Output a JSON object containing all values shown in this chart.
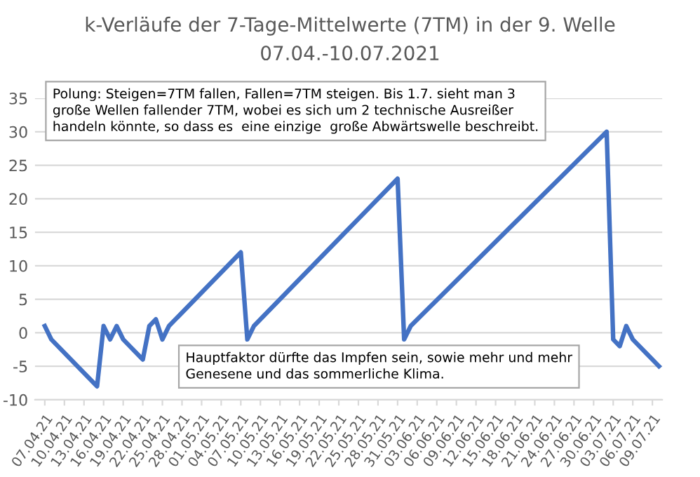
{
  "chart_data": {
    "type": "line",
    "title": "k-Verläufe der 7-Tage-Mittelwerte (7TM) in der 9. Welle",
    "subtitle": "07.04.-10.07.2021",
    "annotations": [
      "Polung: Steigen=7TM fallen, Fallen=7TM steigen. Bis 1.7. sieht man 3\ngroße Wellen fallender 7TM, wobei es sich um 2 technische Ausreißer\nhandeln könnte, so dass es  eine einzige  große Abwärtswelle beschreibt.",
      "Hauptfaktor dürfte das Impfen sein, sowie mehr und mehr\nGenesene und das sommerliche Klima."
    ],
    "x": [
      "2021-04-07",
      "2021-04-08",
      "2021-04-15",
      "2021-04-16",
      "2021-04-17",
      "2021-04-18",
      "2021-04-19",
      "2021-04-22",
      "2021-04-23",
      "2021-04-24",
      "2021-04-25",
      "2021-04-26",
      "2021-05-07",
      "2021-05-08",
      "2021-05-09",
      "2021-05-23",
      "2021-05-31",
      "2021-06-01",
      "2021-06-02",
      "2021-07-02",
      "2021-07-03",
      "2021-07-04",
      "2021-07-05",
      "2021-07-06",
      "2021-07-08",
      "2021-07-10"
    ],
    "series": [
      {
        "color": "#4472c4",
        "values": [
          1,
          -1,
          -8,
          1,
          -1,
          1,
          -1,
          -4,
          1,
          2,
          -1,
          1,
          12,
          -1,
          1,
          15,
          23,
          -1,
          1,
          30,
          -1,
          -2,
          1,
          -1,
          -3,
          -5
        ]
      }
    ],
    "xlim": [
      "2021-04-05T12:00",
      "2021-07-10T12:00"
    ],
    "xticks": [
      {
        "value": "2021-04-07",
        "label": "07.04.21"
      },
      {
        "value": "2021-04-10",
        "label": "10.04.21"
      },
      {
        "value": "2021-04-13",
        "label": "13.04.21"
      },
      {
        "value": "2021-04-16",
        "label": "16.04.21"
      },
      {
        "value": "2021-04-19",
        "label": "19.04.21"
      },
      {
        "value": "2021-04-22",
        "label": "22.04.21"
      },
      {
        "value": "2021-04-25",
        "label": "25.04.21"
      },
      {
        "value": "2021-04-28",
        "label": "28.04.21"
      },
      {
        "value": "2021-05-01",
        "label": "01.05.21"
      },
      {
        "value": "2021-05-04",
        "label": "04.05.21"
      },
      {
        "value": "2021-05-07",
        "label": "07.05.21"
      },
      {
        "value": "2021-05-10",
        "label": "10.05.21"
      },
      {
        "value": "2021-05-13",
        "label": "13.05.21"
      },
      {
        "value": "2021-05-16",
        "label": "16.05.21"
      },
      {
        "value": "2021-05-19",
        "label": "19.05.21"
      },
      {
        "value": "2021-05-22",
        "label": "22.05.21"
      },
      {
        "value": "2021-05-25",
        "label": "25.05.21"
      },
      {
        "value": "2021-05-28",
        "label": "28.05.21"
      },
      {
        "value": "2021-05-31",
        "label": "31.05.21"
      },
      {
        "value": "2021-06-03",
        "label": "03.06.21"
      },
      {
        "value": "2021-06-06",
        "label": "06.06.21"
      },
      {
        "value": "2021-06-09",
        "label": "09.06.21"
      },
      {
        "value": "2021-06-12",
        "label": "12.06.21"
      },
      {
        "value": "2021-06-15",
        "label": "15.06.21"
      },
      {
        "value": "2021-06-18",
        "label": "18.06.21"
      },
      {
        "value": "2021-06-21",
        "label": "21.06.21"
      },
      {
        "value": "2021-06-24",
        "label": "24.06.21"
      },
      {
        "value": "2021-06-27",
        "label": "27.06.21"
      },
      {
        "value": "2021-06-30",
        "label": "30.06.21"
      },
      {
        "value": "2021-07-03",
        "label": "03.07.21"
      },
      {
        "value": "2021-07-06",
        "label": "06.07.21"
      },
      {
        "value": "2021-07-09",
        "label": "09.07.21"
      }
    ],
    "ylim": [
      -10,
      35
    ],
    "yticks": [
      -10,
      -5,
      0,
      5,
      10,
      15,
      20,
      25,
      30,
      35
    ],
    "grid": "y",
    "legend": false,
    "marker": "none",
    "line_style": "solid"
  }
}
